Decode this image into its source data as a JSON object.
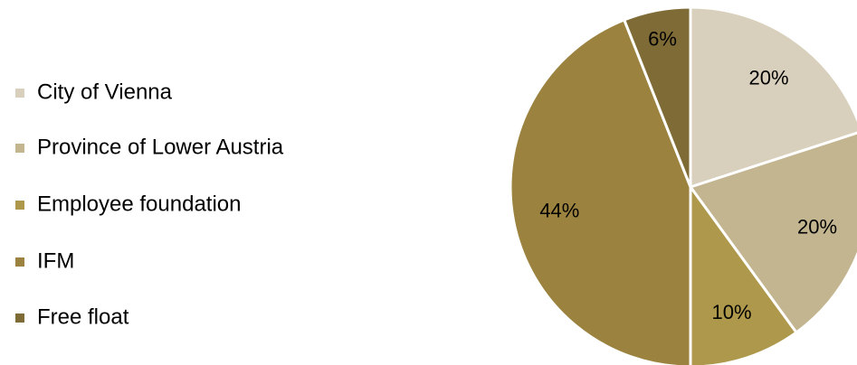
{
  "chart_data": {
    "type": "pie",
    "categories": [
      "City of Vienna",
      "Province of Lower Austria",
      "Employee foundation",
      "IFM",
      "Free float"
    ],
    "values": [
      20,
      20,
      10,
      44,
      6
    ],
    "value_labels": [
      "20%",
      "20%",
      "10%",
      "44%",
      "6%"
    ],
    "colors": [
      "#d8d0bc",
      "#c2b590",
      "#ae984b",
      "#9b823f",
      "#7f6b35"
    ],
    "legend": "left"
  }
}
